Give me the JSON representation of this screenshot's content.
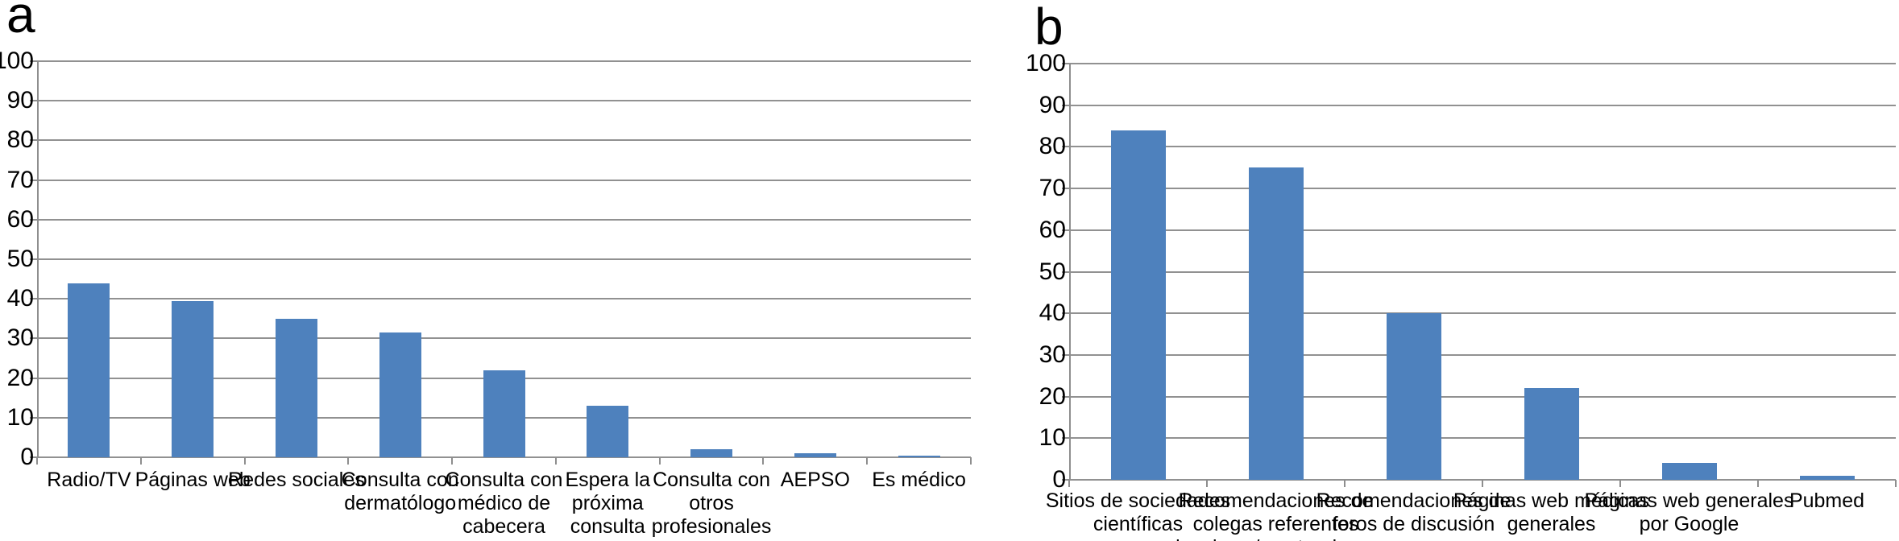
{
  "figure": {
    "background": "#ffffff"
  },
  "chart_data": [
    {
      "type": "bar",
      "panel_label": "a",
      "title": "",
      "xlabel": "",
      "ylabel": "",
      "categories": [
        "Radio/TV",
        "Páginas web",
        "Redes sociales",
        "Consulta con dermatólogo",
        "Consulta con médico de cabecera",
        "Espera la próxima consulta",
        "Consulta con otros profesionales de salud",
        "AEPSO",
        "Es médico"
      ],
      "tick_labels": [
        "Radio/TV",
        "Páginas web",
        "Redes sociales",
        "Consulta con\ndermatólogo",
        "Consulta con\nmédico de\ncabecera",
        "Espera la\npróxima\nconsulta",
        "Consulta con\notros\nprofesionales\nde salud",
        "AEPSO",
        "Es médico"
      ],
      "values": [
        44,
        39.5,
        35,
        31.5,
        22,
        13,
        2,
        1,
        0.5
      ],
      "ylim": [
        0,
        100
      ],
      "ytick_step": 10,
      "grid": true,
      "legend": null,
      "bar_color": "#4E81BD",
      "grid_color": "#919191",
      "axis_color": "#8E8E8E",
      "text_color": "#000000"
    },
    {
      "type": "bar",
      "panel_label": "b",
      "title": "",
      "xlabel": "",
      "ylabel": "",
      "categories": [
        "Sitios de sociedades científicas",
        "Recomendaciones de colegas referentes locales y/o extranjeros",
        "Recomendaciones de foros de discusión",
        "Páginas web médicas generales",
        "Páginas web generales por Google",
        "Pubmed"
      ],
      "tick_labels": [
        "Sitios de sociedades\ncientíficas",
        "Recomendaciones de\ncolegas referentes\nlocales y/o extranjeros",
        "Recomendaciones de\nforos de discusión",
        "Páginas web médicas\ngenerales",
        "Páginas web generales\npor Google",
        "Pubmed"
      ],
      "values": [
        84,
        75,
        40,
        22,
        4,
        1
      ],
      "ylim": [
        0,
        100
      ],
      "ytick_step": 10,
      "grid": true,
      "legend": null,
      "bar_color": "#4E81BD",
      "grid_color": "#919191",
      "axis_color": "#8E8E8E",
      "text_color": "#000000"
    }
  ]
}
